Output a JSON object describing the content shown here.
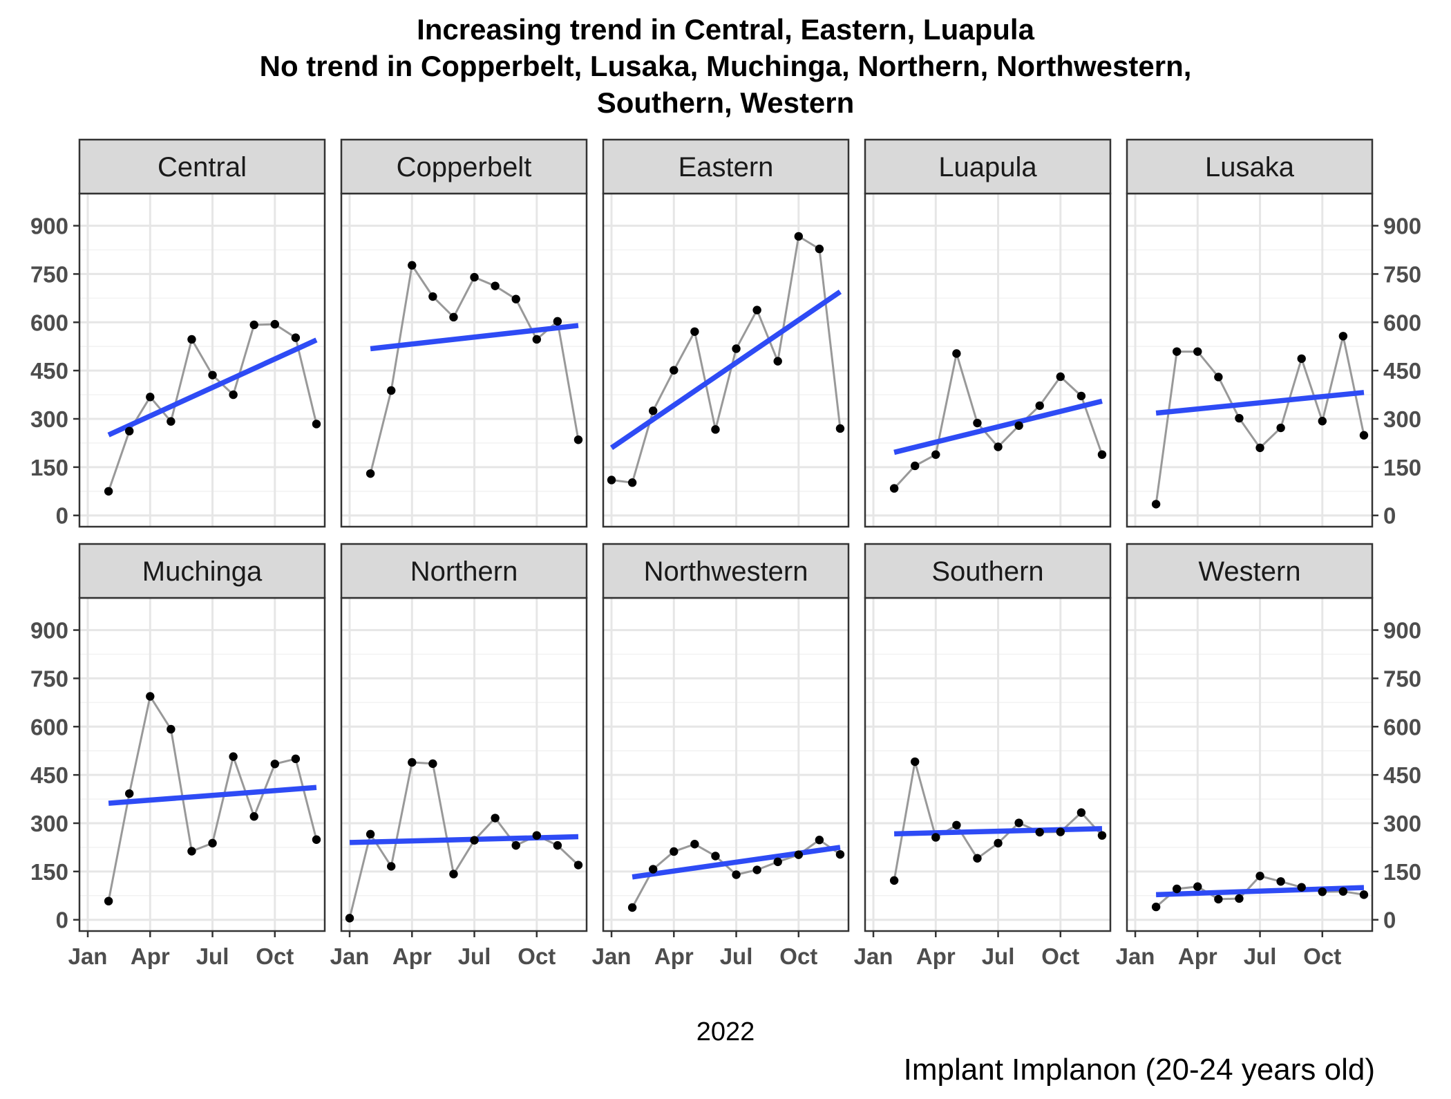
{
  "chart_data": {
    "type": "line",
    "title_lines": [
      "Increasing trend in Central, Eastern, Luapula",
      "No trend in Copperbelt, Lusaka, Muchinga, Northern, Northwestern,",
      "Southern, Western"
    ],
    "xlabel": "2022",
    "ylabel": "",
    "caption": "Implant Implanon (20-24 years old)",
    "x_ticks": [
      "Jan",
      "Apr",
      "Jul",
      "Oct"
    ],
    "x_tick_months": [
      1,
      4,
      7,
      10
    ],
    "x_months": [
      1,
      2,
      3,
      4,
      5,
      6,
      7,
      8,
      9,
      10,
      11,
      12
    ],
    "y_ticks": [
      0,
      150,
      300,
      450,
      600,
      750,
      900
    ],
    "ylim": [
      -35,
      1000
    ],
    "grid": true,
    "line_color": "#999999",
    "point_color": "#000000",
    "trend_color": "#2e4bf5",
    "panels": [
      {
        "name": "Central",
        "values": [
          75,
          262,
          368,
          292,
          547,
          436,
          375,
          592,
          594,
          552,
          284
        ],
        "value_months": [
          2,
          3,
          4,
          5,
          6,
          7,
          8,
          9,
          10,
          11,
          12
        ],
        "trend": [
          250,
          545
        ]
      },
      {
        "name": "Copperbelt",
        "values": [
          130,
          388,
          777,
          680,
          616,
          740,
          713,
          672,
          547,
          603,
          235
        ],
        "value_months": [
          2,
          3,
          4,
          5,
          6,
          7,
          8,
          9,
          10,
          11,
          12
        ],
        "trend": [
          518,
          590
        ]
      },
      {
        "name": "Eastern",
        "values": [
          110,
          102,
          325,
          451,
          571,
          267,
          518,
          638,
          479,
          867,
          828,
          270
        ],
        "value_months": [
          1,
          2,
          3,
          4,
          5,
          6,
          7,
          8,
          9,
          10,
          11,
          12
        ],
        "trend": [
          210,
          695
        ]
      },
      {
        "name": "Luapula",
        "values": [
          84,
          154,
          189,
          503,
          287,
          213,
          279,
          341,
          431,
          371,
          189
        ],
        "value_months": [
          2,
          3,
          4,
          5,
          6,
          7,
          8,
          9,
          10,
          11,
          12
        ],
        "trend": [
          196,
          355
        ]
      },
      {
        "name": "Lusaka",
        "values": [
          35,
          509,
          509,
          430,
          302,
          210,
          272,
          487,
          293,
          557,
          249
        ],
        "value_months": [
          2,
          3,
          4,
          5,
          6,
          7,
          8,
          9,
          10,
          11,
          12
        ],
        "trend": [
          318,
          382
        ]
      },
      {
        "name": "Muchinga",
        "values": [
          58,
          392,
          694,
          592,
          213,
          238,
          507,
          321,
          484,
          500,
          249
        ],
        "value_months": [
          2,
          3,
          4,
          5,
          6,
          7,
          8,
          9,
          10,
          11,
          12
        ],
        "trend": [
          362,
          411
        ]
      },
      {
        "name": "Northern",
        "values": [
          5,
          266,
          166,
          489,
          485,
          142,
          247,
          316,
          231,
          262,
          231,
          170
        ],
        "value_months": [
          1,
          2,
          3,
          4,
          5,
          6,
          7,
          8,
          9,
          10,
          11,
          12
        ],
        "trend": [
          240,
          258
        ]
      },
      {
        "name": "Northwestern",
        "values": [
          38,
          157,
          212,
          235,
          198,
          140,
          155,
          180,
          202,
          248,
          203
        ],
        "value_months": [
          2,
          3,
          4,
          5,
          6,
          7,
          8,
          9,
          10,
          11,
          12
        ],
        "trend": [
          133,
          225
        ]
      },
      {
        "name": "Southern",
        "values": [
          122,
          491,
          256,
          294,
          191,
          238,
          301,
          272,
          273,
          333,
          262
        ],
        "value_months": [
          2,
          3,
          4,
          5,
          6,
          7,
          8,
          9,
          10,
          11,
          12
        ],
        "trend": [
          267,
          283
        ]
      },
      {
        "name": "Western",
        "values": [
          40,
          96,
          103,
          64,
          66,
          136,
          119,
          101,
          87,
          88,
          78
        ],
        "value_months": [
          2,
          3,
          4,
          5,
          6,
          7,
          8,
          9,
          10,
          11,
          12
        ],
        "trend": [
          78,
          100
        ]
      }
    ]
  }
}
